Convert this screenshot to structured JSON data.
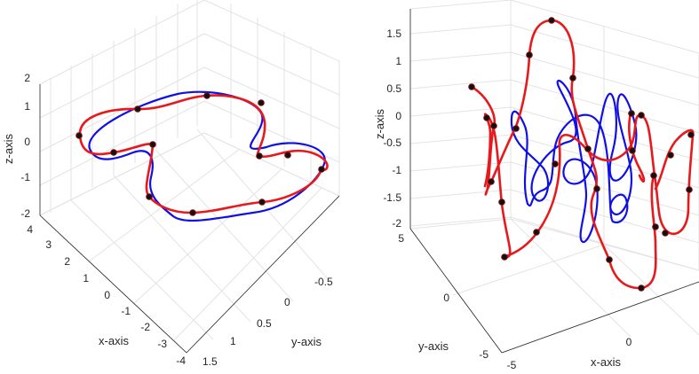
{
  "chart_data": [
    {
      "type": "line3d",
      "xlabel": "x-axis",
      "ylabel": "y-axis",
      "zlabel": "z-axis",
      "grid": true,
      "x_ticks": [
        "4",
        "3",
        "2",
        "1",
        "0",
        "-1",
        "-2",
        "-3",
        "-4"
      ],
      "y_ticks": [
        "-0.5",
        "0",
        "0.5",
        "1",
        "1.5"
      ],
      "z_ticks": [
        "2",
        "1",
        "0",
        "-1",
        "-2"
      ],
      "xlim": [
        -4,
        4
      ],
      "ylim": [
        -0.7,
        1.5
      ],
      "zlim": [
        -2,
        2
      ],
      "colors": {
        "red_curve": "#e8191c",
        "blue_curve": "#1010e6",
        "markers": "#111111"
      }
    },
    {
      "type": "line3d",
      "xlabel": "x-axis",
      "ylabel": "y-axis",
      "zlabel": "z-axis",
      "grid": true,
      "x_ticks": [
        "-5",
        "0"
      ],
      "y_ticks": [
        "5",
        "0",
        "-5"
      ],
      "z_ticks": [
        "1.5",
        "1",
        "0.5",
        "0",
        "-0.5",
        "-1",
        "-1.5",
        "-2"
      ],
      "xlim": [
        -5,
        5
      ],
      "ylim": [
        -5,
        5
      ],
      "zlim": [
        -2,
        1.9
      ],
      "colors": {
        "red_curve": "#e8191c",
        "blue_curve": "#1010e6",
        "markers": "#111111"
      }
    }
  ]
}
